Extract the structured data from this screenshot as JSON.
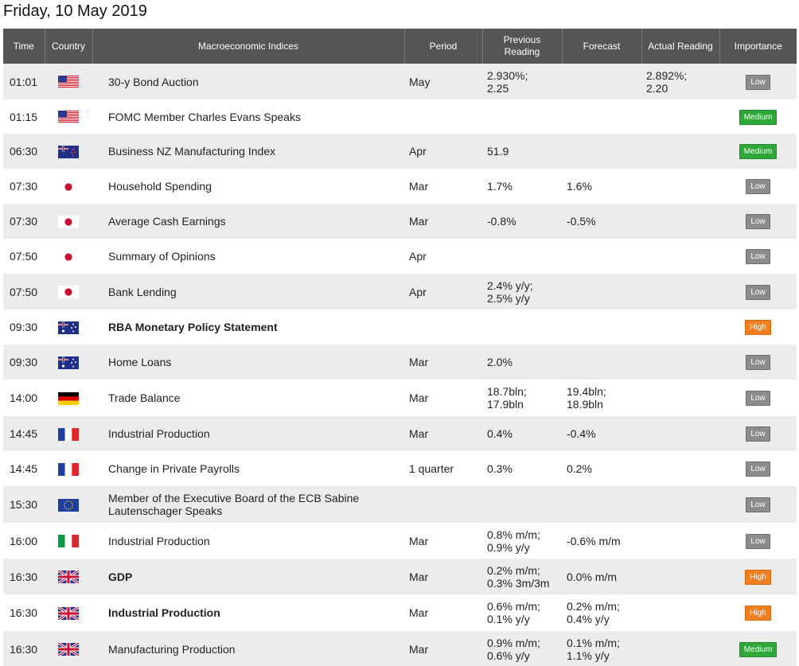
{
  "page": {
    "date_title": "Friday, 10 May 2019"
  },
  "table": {
    "headers": {
      "time": "Time",
      "country": "Country",
      "indices": "Macroeconomic Indices",
      "period": "Period",
      "previous": "Previous Reading",
      "forecast": "Forecast",
      "actual": "Actual Reading",
      "importance": "Importance"
    },
    "rows": [
      {
        "time": "01:01",
        "flag": "us",
        "event": "30-y Bond Auction",
        "bold": false,
        "period": "May",
        "previous": [
          "2.930%;",
          "2.25"
        ],
        "forecast": [],
        "actual": [
          "2.892%;",
          "2.20"
        ],
        "importance": "Low",
        "level": "low"
      },
      {
        "time": "01:15",
        "flag": "us",
        "event": "FOMC Member Charles Evans Speaks",
        "bold": false,
        "period": "",
        "previous": [],
        "forecast": [],
        "actual": [],
        "importance": "Medium",
        "level": "medium"
      },
      {
        "time": "06:30",
        "flag": "nz",
        "event": "Business NZ Manufacturing Index",
        "bold": false,
        "period": "Apr",
        "previous": [
          "51.9"
        ],
        "forecast": [],
        "actual": [],
        "importance": "Medium",
        "level": "medium"
      },
      {
        "time": "07:30",
        "flag": "jp",
        "event": "Household Spending",
        "bold": false,
        "period": "Mar",
        "previous": [
          "1.7%"
        ],
        "forecast": [
          "1.6%"
        ],
        "actual": [],
        "importance": "Low",
        "level": "low"
      },
      {
        "time": "07:30",
        "flag": "jp",
        "event": "Average Cash Earnings",
        "bold": false,
        "period": "Mar",
        "previous": [
          "-0.8%"
        ],
        "forecast": [
          "-0.5%"
        ],
        "actual": [],
        "importance": "Low",
        "level": "low"
      },
      {
        "time": "07:50",
        "flag": "jp",
        "event": "Summary of Opinions",
        "bold": false,
        "period": "Apr",
        "previous": [],
        "forecast": [],
        "actual": [],
        "importance": "Low",
        "level": "low"
      },
      {
        "time": "07:50",
        "flag": "jp",
        "event": "Bank Lending",
        "bold": false,
        "period": "Apr",
        "previous": [
          "2.4% y/y;",
          "2.5% y/y"
        ],
        "forecast": [],
        "actual": [],
        "importance": "Low",
        "level": "low"
      },
      {
        "time": "09:30",
        "flag": "au",
        "event": "RBA Monetary Policy Statement",
        "bold": true,
        "period": "",
        "previous": [],
        "forecast": [],
        "actual": [],
        "importance": "High",
        "level": "high"
      },
      {
        "time": "09:30",
        "flag": "au",
        "event": "Home Loans",
        "bold": false,
        "period": "Mar",
        "previous": [
          "2.0%"
        ],
        "forecast": [],
        "actual": [],
        "importance": "Low",
        "level": "low"
      },
      {
        "time": "14:00",
        "flag": "de",
        "event": "Trade Balance",
        "bold": false,
        "period": "Mar",
        "previous": [
          "18.7bln;",
          "17.9bln"
        ],
        "forecast": [
          "19.4bln;",
          "18.9bln"
        ],
        "actual": [],
        "importance": "Low",
        "level": "low"
      },
      {
        "time": "14:45",
        "flag": "fr",
        "event": "Industrial Production",
        "bold": false,
        "period": "Mar",
        "previous": [
          "0.4%"
        ],
        "forecast": [
          "-0.4%"
        ],
        "actual": [],
        "importance": "Low",
        "level": "low"
      },
      {
        "time": "14:45",
        "flag": "fr",
        "event": "Change in Private Payrolls",
        "bold": false,
        "period": "1 quarter",
        "previous": [
          "0.3%"
        ],
        "forecast": [
          "0.2%"
        ],
        "actual": [],
        "importance": "Low",
        "level": "low"
      },
      {
        "time": "15:30",
        "flag": "eu",
        "event": "Member of the Executive Board of the ECB Sabine Lautenschager Speaks",
        "bold": false,
        "period": "",
        "previous": [],
        "forecast": [],
        "actual": [],
        "importance": "Low",
        "level": "low"
      },
      {
        "time": "16:00",
        "flag": "it",
        "event": "Industrial Production",
        "bold": false,
        "period": "Mar",
        "previous": [
          "0.8% m/m;",
          "0.9% y/y"
        ],
        "forecast": [
          "-0.6% m/m"
        ],
        "actual": [],
        "importance": "Low",
        "level": "low"
      },
      {
        "time": "16:30",
        "flag": "gb",
        "event": "GDP",
        "bold": true,
        "period": "Mar",
        "previous": [
          "0.2% m/m;",
          "0.3% 3m/3m"
        ],
        "forecast": [
          "0.0% m/m"
        ],
        "actual": [],
        "importance": "High",
        "level": "high"
      },
      {
        "time": "16:30",
        "flag": "gb",
        "event": "Industrial Production",
        "bold": true,
        "period": "Mar",
        "previous": [
          "0.6% m/m;",
          "0.1% y/y"
        ],
        "forecast": [
          "0.2% m/m;",
          "0.4% y/y"
        ],
        "actual": [],
        "importance": "High",
        "level": "high"
      },
      {
        "time": "16:30",
        "flag": "gb",
        "event": "Manufacturing Production",
        "bold": false,
        "period": "Mar",
        "previous": [
          "0.9% m/m;",
          "0.6% y/y"
        ],
        "forecast": [
          "0.1% m/m;",
          "1.1% y/y"
        ],
        "actual": [],
        "importance": "Medium",
        "level": "medium"
      }
    ]
  },
  "colors": {
    "header_bg": "#555555",
    "row_alt": "#ececec",
    "low": "#8c8c8c",
    "medium": "#2fa73a",
    "high": "#f07f22"
  }
}
